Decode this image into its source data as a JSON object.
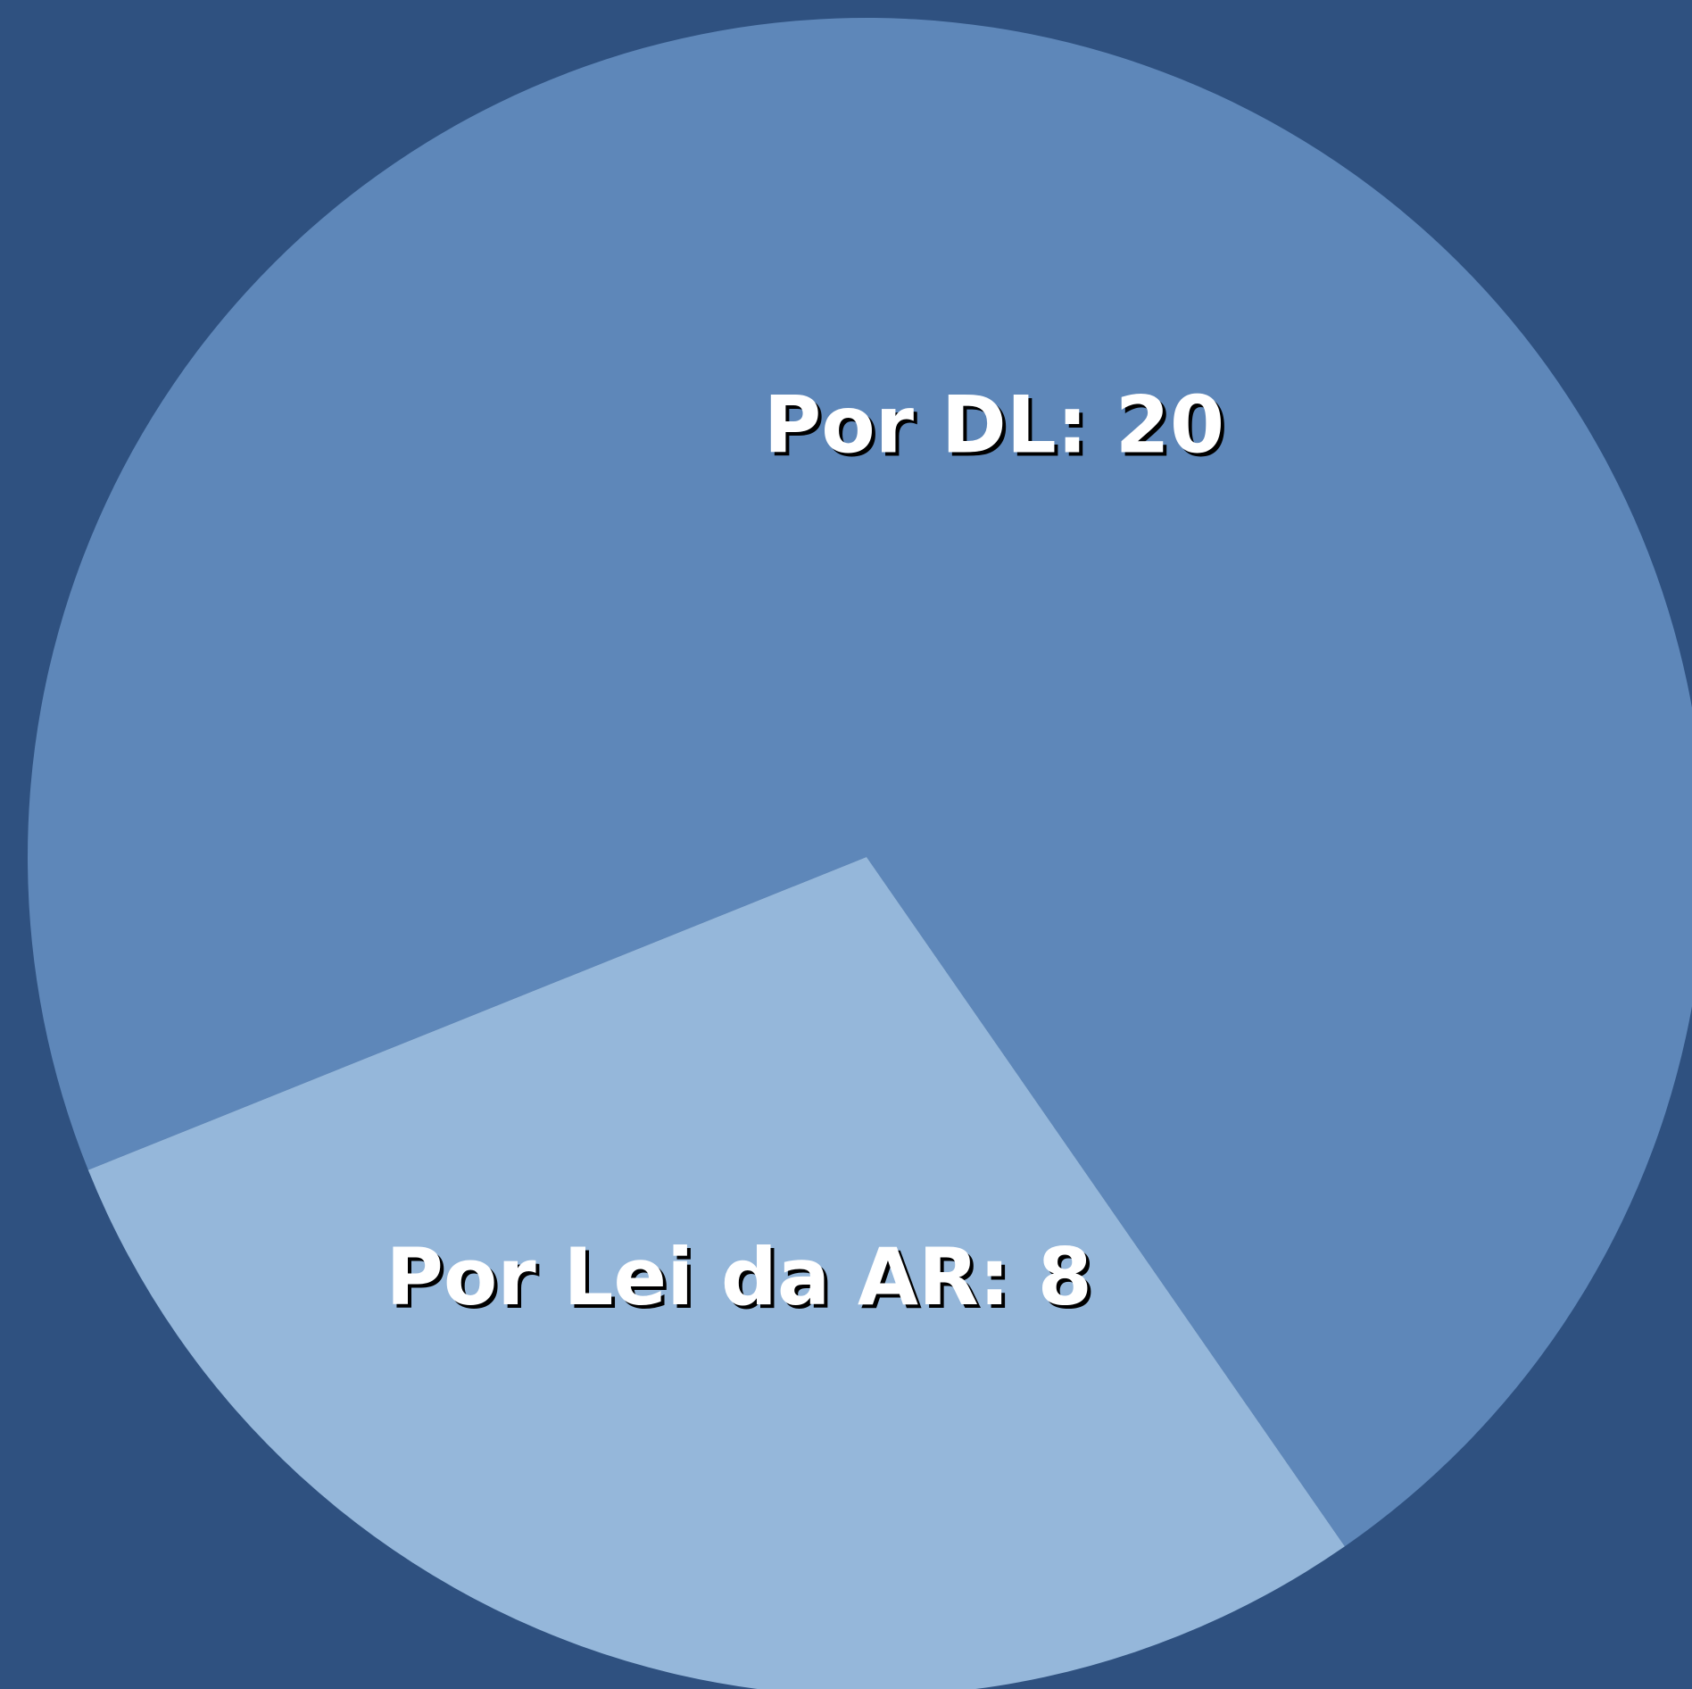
{
  "chart_data": {
    "type": "pie",
    "categories": [
      "Por DL",
      "Por Lei da AR"
    ],
    "values": [
      20,
      8
    ],
    "value_labels": [
      "Por DL: 20",
      "Por Lei da AR: 8"
    ],
    "colors": [
      "#5e87b9",
      "#95b7da"
    ],
    "background": "#2f5180"
  }
}
